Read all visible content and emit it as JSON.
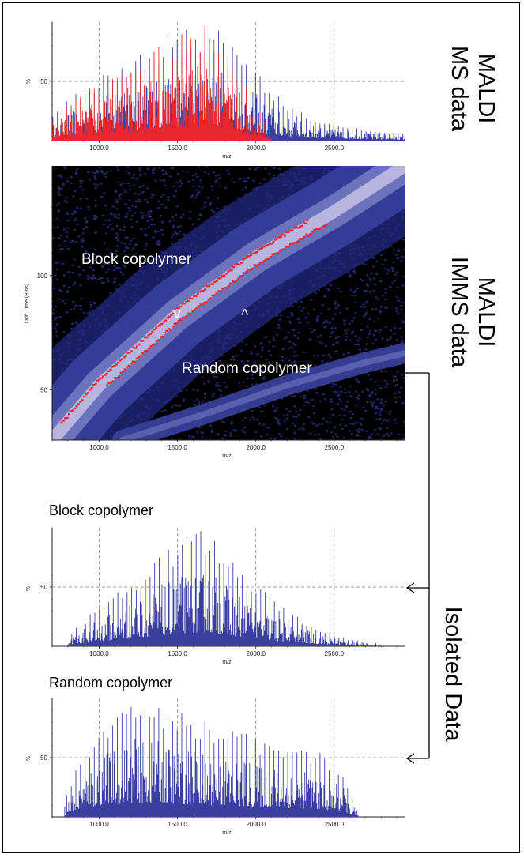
{
  "side_labels": {
    "ms": [
      "MALDI",
      "MS data"
    ],
    "imms": [
      "MALDI",
      "IMMS data"
    ],
    "isolated": "Isolated Data"
  },
  "colors": {
    "blue": "#3a3f9e",
    "red": "#e8282e",
    "heat_bg": "#000000",
    "heat_mid": "#3b42a0",
    "heat_hi": "#d9d3ee"
  },
  "chart_data": [
    {
      "type": "line",
      "title": "",
      "xlabel": "m/z",
      "ylabel": "%",
      "xlim": [
        700,
        2950
      ],
      "ylim": [
        0,
        100
      ],
      "x_ticks": [
        "1000.0",
        "1500.0",
        "2000.0",
        "2500.0"
      ],
      "x_tick_values": [
        1000,
        1500,
        2000,
        2500
      ],
      "y_ticks": [
        "50"
      ],
      "y_tick_values": [
        50
      ],
      "grid": true,
      "series": [
        {
          "color": "#3a3f9e",
          "envelope_x": [
            700,
            800,
            1000,
            1200,
            1400,
            1600,
            1700,
            1800,
            2000,
            2200,
            2400,
            2600,
            2800,
            2950
          ],
          "envelope_y": [
            20,
            35,
            55,
            70,
            85,
            98,
            100,
            90,
            60,
            30,
            18,
            12,
            8,
            6
          ]
        },
        {
          "color": "#e8282e",
          "envelope_x": [
            700,
            800,
            1000,
            1200,
            1400,
            1600,
            1700,
            1800,
            1900,
            2000,
            2100
          ],
          "envelope_y": [
            15,
            30,
            50,
            68,
            85,
            97,
            100,
            85,
            60,
            30,
            10
          ]
        }
      ]
    },
    {
      "type": "heatmap",
      "title": "",
      "xlabel": "m/z",
      "ylabel": "Drift Time (Bins)",
      "xlim": [
        700,
        2950
      ],
      "ylim": [
        28,
        148
      ],
      "x_ticks": [
        "1000.0",
        "1500.0",
        "2000.0",
        "2500.0"
      ],
      "x_tick_values": [
        1000,
        1500,
        2000,
        2500
      ],
      "y_ticks": [
        "50",
        "100"
      ],
      "y_tick_values": [
        50,
        100
      ],
      "annotations": [
        "Block copolymer",
        "Random copolymer",
        "v",
        "^"
      ]
    },
    {
      "type": "line",
      "title": "Block copolymer",
      "xlabel": "m/z",
      "ylabel": "%",
      "xlim": [
        700,
        2950
      ],
      "ylim": [
        0,
        100
      ],
      "x_ticks": [
        "1000.0",
        "1500.0",
        "2000.0",
        "2500.0"
      ],
      "x_tick_values": [
        1000,
        1500,
        2000,
        2500
      ],
      "y_ticks": [
        "50"
      ],
      "y_tick_values": [
        50
      ],
      "grid": true,
      "series": [
        {
          "color": "#3a3f9e",
          "envelope_x": [
            800,
            900,
            1000,
            1200,
            1400,
            1600,
            1700,
            1800,
            2000,
            2200,
            2400,
            2600,
            2800
          ],
          "envelope_y": [
            10,
            22,
            35,
            55,
            78,
            95,
            100,
            80,
            55,
            30,
            15,
            6,
            2
          ]
        }
      ]
    },
    {
      "type": "line",
      "title": "Random copolymer",
      "xlabel": "m/z",
      "ylabel": "%",
      "xlim": [
        700,
        2950
      ],
      "ylim": [
        0,
        100
      ],
      "x_ticks": [
        "1000.0",
        "1500.0",
        "2000.0",
        "2500.0"
      ],
      "x_tick_values": [
        1000,
        1500,
        2000,
        2500
      ],
      "y_ticks": [
        "50"
      ],
      "y_tick_values": [
        50
      ],
      "grid": true,
      "series": [
        {
          "color": "#3a3f9e",
          "envelope_x": [
            780,
            850,
            1000,
            1200,
            1400,
            1600,
            1800,
            2000,
            2200,
            2400,
            2550,
            2620,
            2660
          ],
          "envelope_y": [
            15,
            40,
            80,
            98,
            95,
            85,
            78,
            70,
            62,
            55,
            40,
            15,
            0
          ]
        }
      ]
    }
  ]
}
